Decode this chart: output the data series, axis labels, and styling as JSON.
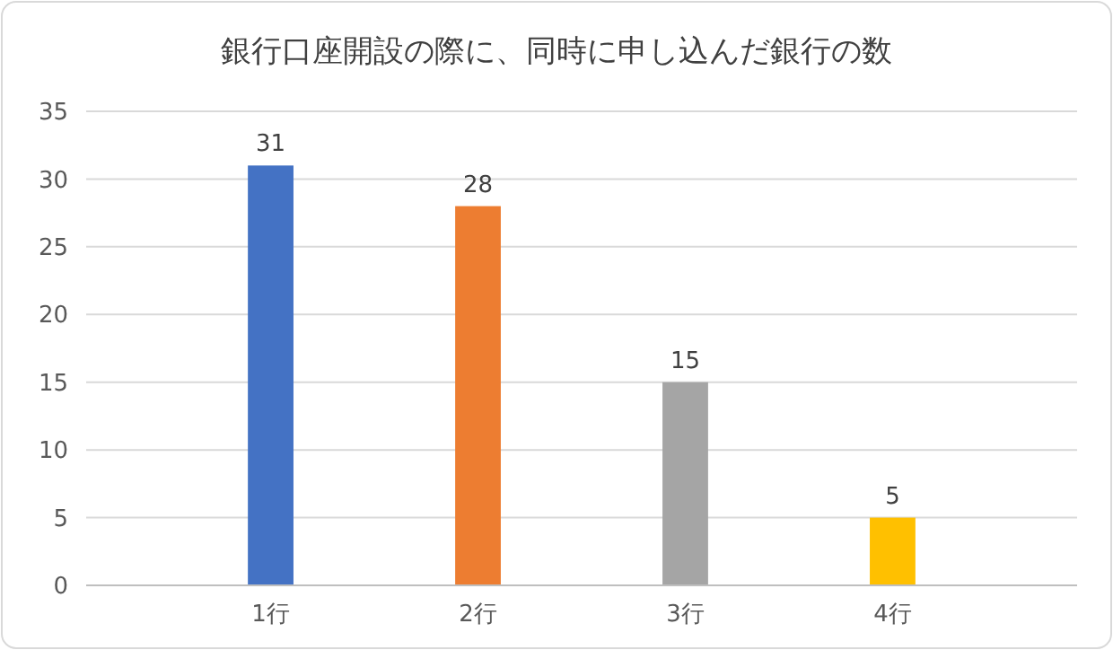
{
  "chart_data": {
    "type": "bar",
    "title": "銀行口座開設の際に、同時に申し込んだ銀行の数",
    "categories": [
      "1行",
      "2行",
      "3行",
      "4行"
    ],
    "values": [
      31,
      28,
      15,
      5
    ],
    "colors": [
      "#4472c4",
      "#ed7d31",
      "#a5a5a5",
      "#ffc000"
    ],
    "ylim": [
      0,
      35
    ],
    "yticks": [
      0,
      5,
      10,
      15,
      20,
      25,
      30,
      35
    ],
    "grid": "y",
    "data_labels": true
  }
}
